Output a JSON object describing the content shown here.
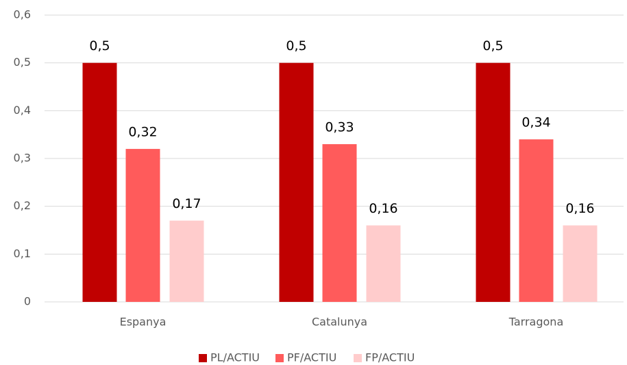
{
  "chart_data": {
    "type": "bar",
    "categories": [
      "Espanya",
      "Catalunya",
      "Tarragona"
    ],
    "series": [
      {
        "name": "PL/ACTIU",
        "color": "#c00000",
        "values": [
          0.5,
          0.5,
          0.5
        ],
        "value_labels": [
          "0,5",
          "0,5",
          "0,5"
        ]
      },
      {
        "name": "PF/ACTIU",
        "color": "#ff5b5b",
        "values": [
          0.32,
          0.33,
          0.34
        ],
        "value_labels": [
          "0,32",
          "0,33",
          "0,34"
        ]
      },
      {
        "name": "FP/ACTIU",
        "color": "#ffcccc",
        "values": [
          0.17,
          0.16,
          0.16
        ],
        "value_labels": [
          "0,17",
          "0,16",
          "0,16"
        ]
      }
    ],
    "ylim": [
      0,
      0.6
    ],
    "yticks": [
      0,
      {
        "value": 0.1,
        "label": "0,1"
      },
      {
        "value": 0.2,
        "label": "0,2"
      },
      {
        "value": 0.3,
        "label": "0,3"
      },
      {
        "value": 0.4,
        "label": "0,4"
      },
      {
        "value": 0.5,
        "label": "0,5"
      },
      {
        "value": 0.6,
        "label": "0,6"
      }
    ],
    "grid": true,
    "legend": "bottom"
  }
}
